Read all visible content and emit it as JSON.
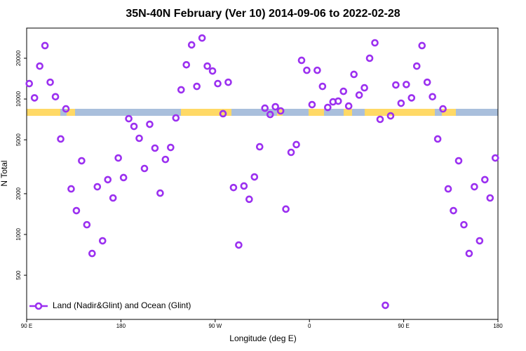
{
  "chart_data": {
    "type": "scatter",
    "title": "35N-40N February (Ver 10)   2014-09-06 to 2022-02-28",
    "x_label": "Longitude (deg E)",
    "y_label": "N Total",
    "log_y": true,
    "grid": false,
    "legend_position": "bottom-left",
    "xlim": [
      90,
      540
    ],
    "ylim": [
      236,
      33400
    ],
    "xticks": [
      {
        "value": 90,
        "label": "90 E"
      },
      {
        "value": 180,
        "label": "180"
      },
      {
        "value": 270,
        "label": "90 W"
      },
      {
        "value": 360,
        "label": "0"
      },
      {
        "value": 450,
        "label": "90 E"
      },
      {
        "value": 540,
        "label": "180"
      }
    ],
    "yticks": [
      500,
      1000,
      2000,
      5000,
      10000,
      20000
    ],
    "series": [
      {
        "name": "Land (Nadir&Glint) and Ocean (Glint)",
        "color": "#9b30f0",
        "x": [
          92.5,
          97.5,
          102.5,
          107.5,
          112.5,
          117.5,
          122.5,
          127.5,
          132.5,
          137.5,
          142.5,
          147.5,
          152.5,
          157.5,
          162.5,
          167.5,
          172.5,
          177.5,
          182.5,
          187.5,
          192.5,
          197.5,
          202.5,
          207.5,
          212.5,
          217.5,
          222.5,
          227.5,
          232.5,
          237.5,
          242.5,
          247.5,
          252.5,
          257.5,
          262.5,
          267.5,
          272.5,
          277.5,
          282.5,
          287.5,
          292.5,
          297.5,
          302.5,
          307.5,
          312.5,
          317.5,
          322.5,
          327.5,
          332.5,
          337.5,
          342.5,
          347.5,
          352.5,
          357.5,
          362.5,
          367.5,
          372.5,
          377.5,
          382.5,
          387.5,
          392.5,
          397.5,
          402.5,
          407.5,
          412.5,
          417.5,
          422.5,
          427.5,
          432.5,
          437.5,
          442.5,
          447.5,
          452.5,
          457.5,
          462.5,
          467.5,
          472.5,
          477.5,
          482.5,
          487.5,
          492.5,
          497.5,
          502.5,
          507.5,
          512.5,
          517.5,
          522.5,
          527.5,
          532.5,
          537.5
        ],
        "values": [
          13000,
          10200,
          17500,
          24800,
          13300,
          10400,
          5070,
          8460,
          2170,
          1500,
          3500,
          1180,
          724,
          2250,
          898,
          2540,
          1860,
          3670,
          2630,
          7160,
          6280,
          5130,
          3070,
          6510,
          4340,
          2020,
          3580,
          4390,
          7250,
          11700,
          17900,
          25100,
          12400,
          28200,
          17500,
          16100,
          13000,
          7790,
          13300,
          2220,
          836,
          2280,
          1820,
          2660,
          4440,
          8560,
          7690,
          8770,
          8170,
          1540,
          4040,
          4610,
          19300,
          16300,
          9090,
          16300,
          12400,
          8670,
          9530,
          9650,
          11400,
          8870,
          15200,
          10700,
          12100,
          20000,
          26000,
          7080,
          300,
          7510,
          12700,
          9310,
          12800,
          10200,
          17500,
          24800,
          13300,
          10400,
          5070,
          8460,
          2170,
          1500,
          3500,
          1180,
          724,
          2250,
          898,
          2540,
          1860,
          3670
        ]
      }
    ]
  }
}
